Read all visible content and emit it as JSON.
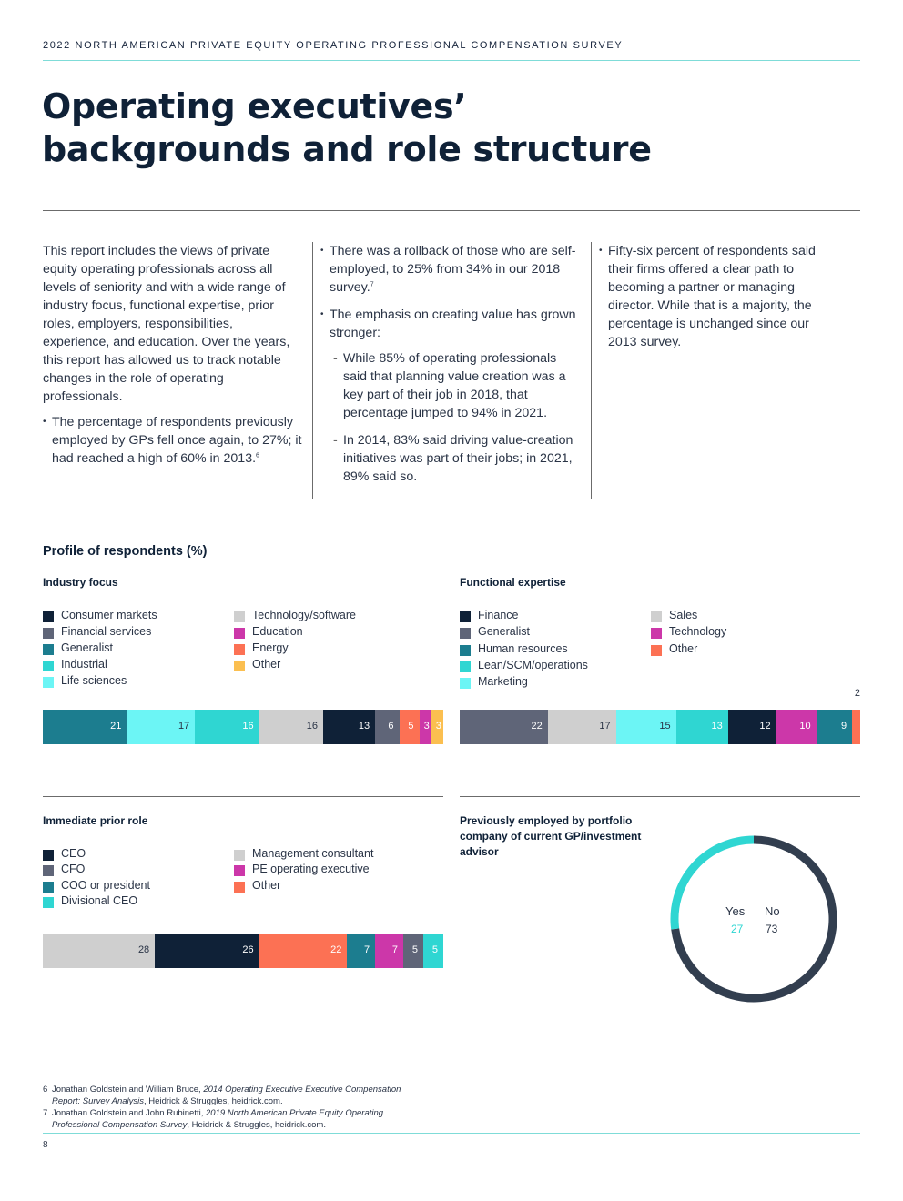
{
  "header": {
    "running_head": "2022 NORTH AMERICAN PRIVATE EQUITY OPERATING PROFESSIONAL COMPENSATION SURVEY",
    "title_line1": "Operating executives’",
    "title_line2": "backgrounds and role structure"
  },
  "intro": {
    "col1_para": "This report includes the views of private equity operating professionals across all levels of seniority and with a wide range of industry focus, functional expertise, prior roles, employers, responsibilities, experience, and education. Over the years, this report has allowed us to track notable changes in the role of operating professionals.",
    "col1_bullet": "The percentage of respondents previously employed by GPs fell once again, to 27%; it had reached a high of 60% in 2013.",
    "col1_bullet_note": "6",
    "col2_bullet1": "There was a rollback of those who are self-employed, to 25% from 34% in our 2018 survey.",
    "col2_bullet1_note": "7",
    "col2_bullet2": "The emphasis on creating value has grown stronger:",
    "col2_sub1": "While 85% of operating professionals said that planning value creation was a key part of their job in 2018, that percentage jumped to 94% in 2021.",
    "col2_sub2": "In 2014, 83% said driving value-creation initiatives was part of their jobs; in 2021, 89% said so.",
    "col3_bullet": "Fifty-six percent of respondents said their firms offered a clear path to becoming a partner or managing director. While that is a majority, the percentage is unchanged since our 2013 survey."
  },
  "profile": {
    "section_title": "Profile of respondents (%)"
  },
  "colors": {
    "navy": "#0f2137",
    "slate": "#5f6578",
    "teal": "#1c7d8f",
    "turquoise": "#2fd6d2",
    "aqua": "#6cf5f5",
    "light_gray": "#cfcfcf",
    "magenta": "#cc37a9",
    "coral": "#fc7154",
    "amber": "#fbbf50",
    "donut_dark": "#323e4f"
  },
  "chart_data": [
    {
      "type": "stacked-bar",
      "title": "Industry focus",
      "legend": [
        {
          "label": "Consumer markets",
          "color": "#0f2137"
        },
        {
          "label": "Financial services",
          "color": "#5f6578"
        },
        {
          "label": "Generalist",
          "color": "#1c7d8f"
        },
        {
          "label": "Industrial",
          "color": "#2fd6d2"
        },
        {
          "label": "Life sciences",
          "color": "#6cf5f5"
        },
        {
          "label": "Technology/software",
          "color": "#cfcfcf"
        },
        {
          "label": "Education",
          "color": "#cc37a9"
        },
        {
          "label": "Energy",
          "color": "#fc7154"
        },
        {
          "label": "Other",
          "color": "#fbbf50"
        }
      ],
      "segments": [
        {
          "name": "Generalist",
          "value": 21,
          "color": "#1c7d8f"
        },
        {
          "name": "Life sciences",
          "value": 17,
          "color": "#6cf5f5"
        },
        {
          "name": "Industrial",
          "value": 16,
          "color": "#2fd6d2"
        },
        {
          "name": "Technology/software",
          "value": 16,
          "color": "#cfcfcf"
        },
        {
          "name": "Consumer markets",
          "value": 13,
          "color": "#0f2137"
        },
        {
          "name": "Financial services",
          "value": 6,
          "color": "#5f6578"
        },
        {
          "name": "Energy",
          "value": 5,
          "color": "#fc7154"
        },
        {
          "name": "Education",
          "value": 3,
          "color": "#cc37a9"
        },
        {
          "name": "Other",
          "value": 3,
          "color": "#fbbf50"
        }
      ]
    },
    {
      "type": "stacked-bar",
      "title": "Functional expertise",
      "legend": [
        {
          "label": "Finance",
          "color": "#0f2137"
        },
        {
          "label": "Generalist",
          "color": "#5f6578"
        },
        {
          "label": "Human resources",
          "color": "#1c7d8f"
        },
        {
          "label": "Lean/SCM/operations",
          "color": "#2fd6d2"
        },
        {
          "label": "Marketing",
          "color": "#6cf5f5"
        },
        {
          "label": "Sales",
          "color": "#cfcfcf"
        },
        {
          "label": "Technology",
          "color": "#cc37a9"
        },
        {
          "label": "Other",
          "color": "#fc7154"
        }
      ],
      "segments": [
        {
          "name": "Generalist",
          "value": 22,
          "color": "#5f6578"
        },
        {
          "name": "Sales",
          "value": 17,
          "color": "#cfcfcf"
        },
        {
          "name": "Marketing",
          "value": 15,
          "color": "#6cf5f5"
        },
        {
          "name": "Lean/SCM/operations",
          "value": 13,
          "color": "#2fd6d2"
        },
        {
          "name": "Finance",
          "value": 12,
          "color": "#0f2137"
        },
        {
          "name": "Technology",
          "value": 10,
          "color": "#cc37a9"
        },
        {
          "name": "Human resources",
          "value": 9,
          "color": "#1c7d8f"
        },
        {
          "name": "Other",
          "value": 2,
          "color": "#fc7154"
        }
      ]
    },
    {
      "type": "stacked-bar",
      "title": "Immediate prior role",
      "legend": [
        {
          "label": "CEO",
          "color": "#0f2137"
        },
        {
          "label": "CFO",
          "color": "#5f6578"
        },
        {
          "label": "COO or president",
          "color": "#1c7d8f"
        },
        {
          "label": "Divisional CEO",
          "color": "#2fd6d2"
        },
        {
          "label": "Management consultant",
          "color": "#cfcfcf"
        },
        {
          "label": "PE operating executive",
          "color": "#cc37a9"
        },
        {
          "label": "Other",
          "color": "#fc7154"
        }
      ],
      "segments": [
        {
          "name": "Management consultant",
          "value": 28,
          "color": "#cfcfcf"
        },
        {
          "name": "CEO",
          "value": 26,
          "color": "#0f2137"
        },
        {
          "name": "Other",
          "value": 22,
          "color": "#fc7154"
        },
        {
          "name": "COO or president",
          "value": 7,
          "color": "#1c7d8f"
        },
        {
          "name": "PE operating executive",
          "value": 7,
          "color": "#cc37a9"
        },
        {
          "name": "CFO",
          "value": 5,
          "color": "#5f6578"
        },
        {
          "name": "Divisional CEO",
          "value": 5,
          "color": "#2fd6d2"
        }
      ]
    },
    {
      "type": "pie",
      "title": "Previously employed by portfolio company of current GP/investment advisor",
      "slices": [
        {
          "label": "Yes",
          "value": 27,
          "color": "#2fd6d2"
        },
        {
          "label": "No",
          "value": 73,
          "color": "#323e4f"
        }
      ]
    }
  ],
  "footnotes": [
    {
      "num": "6",
      "authors": "Jonathan Goldstein and William Bruce, ",
      "title": "2014 Operating Executive Executive Compensation Report: Survey Analysis",
      "source": ", Heidrick & Struggles, heidrick.com."
    },
    {
      "num": "7",
      "authors": "Jonathan Goldstein and John Rubinetti, ",
      "title": "2019 North American Private Equity Operating Professional Compensation Survey",
      "source": ", Heidrick & Struggles, heidrick.com."
    }
  ],
  "page_number": "8"
}
